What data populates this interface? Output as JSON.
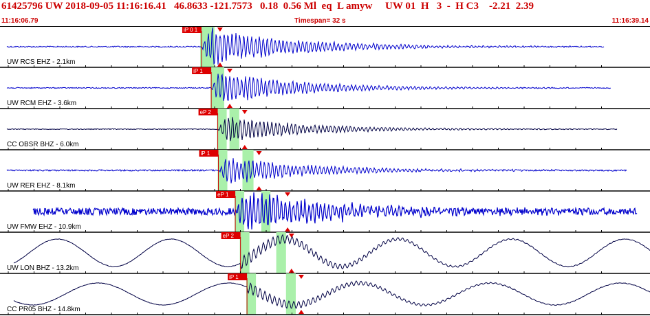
{
  "header": {
    "event_line": "61425796 UW 2018-09-05 11:16:16.41   46.8633 -121.7573   0.18  0.56 Ml  eq  L amyw     UW 01  H   3  -  H C3    -2.21  2.39",
    "start_time": "11:16:06.79",
    "timespan": "Timespan=  32 s",
    "end_time": "11:16:39.14"
  },
  "traces": [
    {
      "label": "UW RCS EHZ - 2.1km",
      "color": "#0000cc",
      "pick": "iP 0 1",
      "pick_frac": 0.31,
      "green": [
        0.308,
        0.33
      ],
      "end_frac": 0.93,
      "style": "burst",
      "amp": 0.85,
      "noise": 0.05
    },
    {
      "label": "UW RCM EHZ - 3.6km",
      "color": "#0000cc",
      "pick": "iP 1",
      "pick_frac": 0.325,
      "green": [
        0.325,
        0.345
      ],
      "end_frac": 0.94,
      "style": "burst",
      "amp": 0.7,
      "noise": 0.04
    },
    {
      "label": "CC OBSR BHZ - 6.0km",
      "color": "#000044",
      "pick": "eP 2",
      "pick_frac": 0.335,
      "green": [
        0.353,
        0.368
      ],
      "end_frac": 0.95,
      "style": "burst",
      "amp": 0.55,
      "noise": 0.03
    },
    {
      "label": "UW RER EHZ - 8.1km",
      "color": "#0000cc",
      "pick": "iP 1",
      "pick_frac": 0.336,
      "green": [
        0.373,
        0.39
      ],
      "end_frac": 0.965,
      "style": "burst",
      "amp": 0.6,
      "noise": 0.06
    },
    {
      "label": "UW FMW EHZ - 10.9km",
      "color": "#0000cc",
      "pick": "eP 1",
      "pick_frac": 0.362,
      "green": [
        0.402,
        0.416
      ],
      "end_frac": 0.98,
      "style": "noisy",
      "amp": 0.85,
      "noise": 0.28
    },
    {
      "label": "UW LON BHZ - 13.2km",
      "color": "#000044",
      "pick": "eP 2",
      "pick_frac": 0.37,
      "green": [
        0.425,
        0.44
      ],
      "end_frac": 1.0,
      "style": "longperiod",
      "amp": 0.45,
      "noise": 0.05
    },
    {
      "label": "CC PR05 BHZ - 14.8km",
      "color": "#000044",
      "pick": "iP 1",
      "pick_frac": 0.38,
      "green": [
        0.44,
        0.455
      ],
      "end_frac": 1.0,
      "style": "longperiod2",
      "amp": 0.4,
      "noise": 0.04
    }
  ]
}
